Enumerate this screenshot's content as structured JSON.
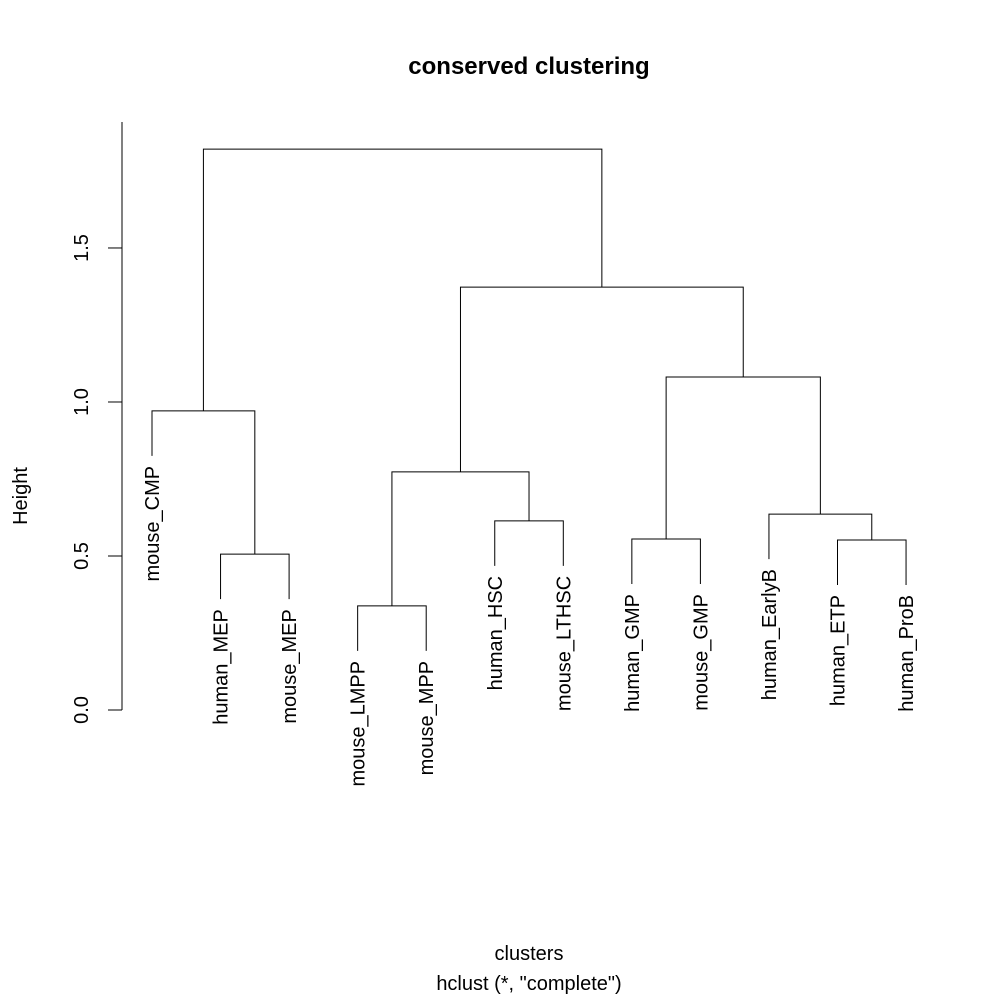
{
  "chart_data": {
    "type": "dendrogram",
    "title": "conserved clustering",
    "xlabel": "clusters",
    "subtitle": "hclust (*, \"complete\")",
    "ylabel": "Height",
    "ylim": [
      0,
      1.909
    ],
    "yticks": [
      {
        "value": 0,
        "label": "0.0"
      },
      0.5,
      {
        "value": 1,
        "label": "1.0"
      },
      1.5
    ],
    "color": "#000000",
    "tree": {
      "height": 1.821,
      "children": [
        {
          "height": 0.971,
          "children": [
            {
              "label": "mouse_CMP"
            },
            {
              "height": 0.506,
              "children": [
                {
                  "label": "human_MEP"
                },
                {
                  "label": "mouse_MEP"
                }
              ]
            }
          ]
        },
        {
          "height": 1.373,
          "children": [
            {
              "height": 0.773,
              "children": [
                {
                  "height": 0.338,
                  "children": [
                    {
                      "label": "mouse_LMPP"
                    },
                    {
                      "label": "mouse_MPP"
                    }
                  ]
                },
                {
                  "height": 0.614,
                  "children": [
                    {
                      "label": "human_HSC"
                    },
                    {
                      "label": "mouse_LTHSC"
                    }
                  ]
                }
              ]
            },
            {
              "height": 1.081,
              "children": [
                {
                  "height": 0.555,
                  "children": [
                    {
                      "label": "human_GMP"
                    },
                    {
                      "label": "mouse_GMP"
                    }
                  ]
                },
                {
                  "height": 0.636,
                  "children": [
                    {
                      "label": "human_EarlyB"
                    },
                    {
                      "height": 0.552,
                      "children": [
                        {
                          "label": "human_ETP"
                        },
                        {
                          "label": "human_ProB"
                        }
                      ]
                    }
                  ]
                }
              ]
            }
          ]
        }
      ]
    }
  }
}
